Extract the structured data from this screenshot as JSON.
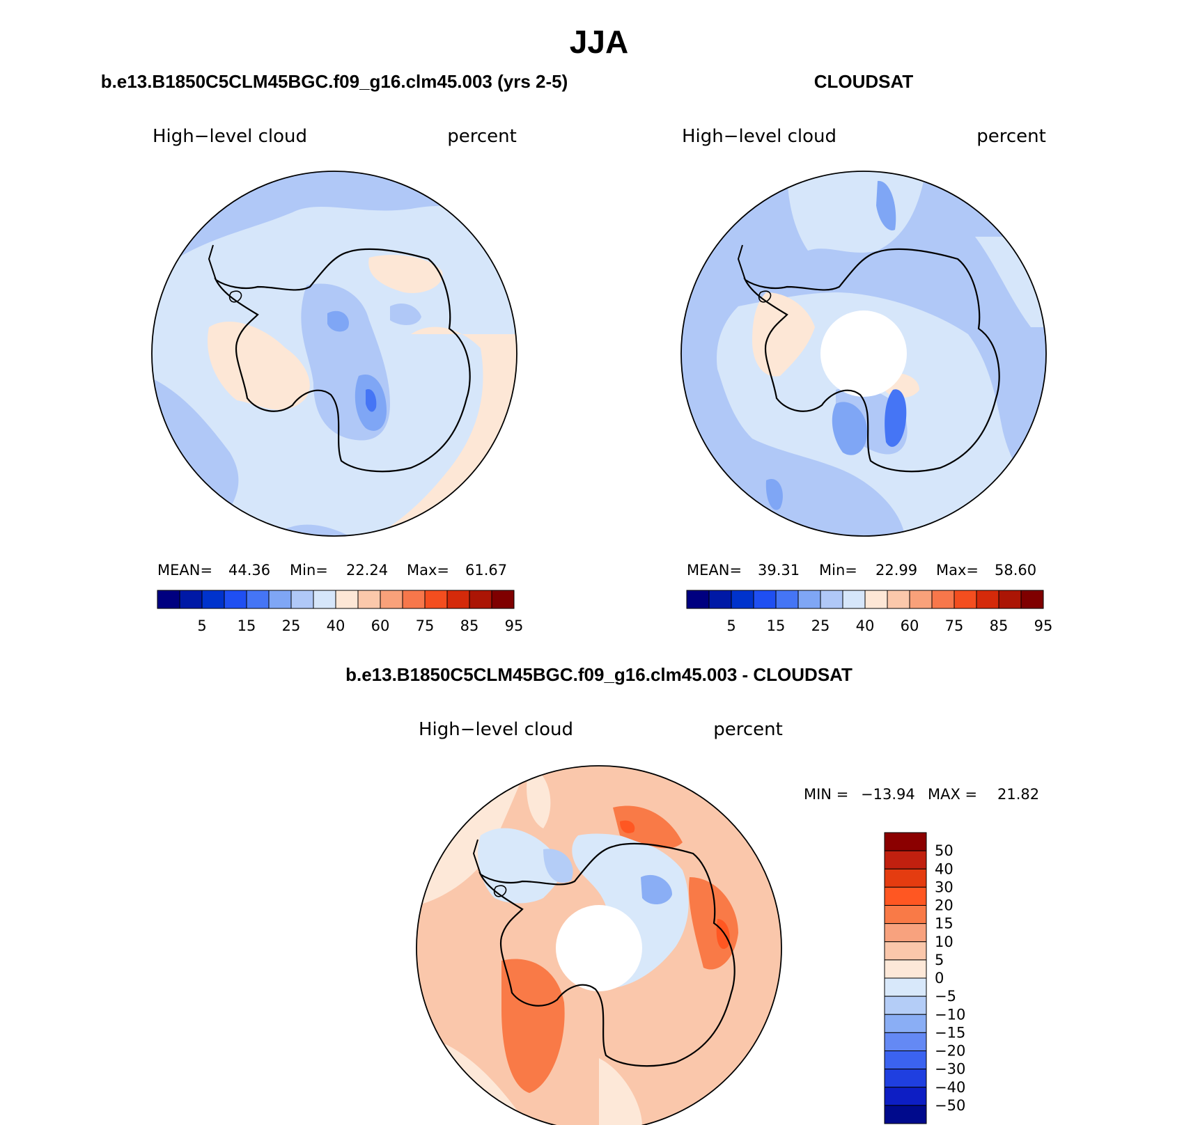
{
  "page": {
    "title": "JJA"
  },
  "panels": [
    {
      "id": "model",
      "heading": "b.e13.B1850C5CLM45BGC.f09_g16.clm45.003 (yrs 2-5)",
      "variable_label": "High−level cloud",
      "units_label": "percent",
      "stats": {
        "mean_label": "MEAN=",
        "mean": "44.36",
        "min_label": "Min=",
        "min": "22.24",
        "max_label": "Max=",
        "max": "61.67"
      },
      "has_pole_hole": false
    },
    {
      "id": "obs",
      "heading": "CLOUDSAT",
      "variable_label": "High−level cloud",
      "units_label": "percent",
      "stats": {
        "mean_label": "MEAN=",
        "mean": "39.31",
        "min_label": "Min=",
        "min": "22.99",
        "max_label": "Max=",
        "max": "58.60"
      },
      "has_pole_hole": true
    }
  ],
  "abs_colorbar": {
    "colors": [
      "#000080",
      "#0019a6",
      "#0033cc",
      "#1f4ff2",
      "#4575f5",
      "#7fa6f5",
      "#b0c8f7",
      "#d6e6fa",
      "#fde7d6",
      "#fbc8ab",
      "#f9a17a",
      "#f7774b",
      "#f44e1f",
      "#d42a0a",
      "#ab1505",
      "#7f0000"
    ],
    "tick_labels": [
      "5",
      "15",
      "25",
      "40",
      "60",
      "75",
      "85",
      "95"
    ]
  },
  "diff_panel": {
    "heading": "b.e13.B1850C5CLM45BGC.f09_g16.clm45.003 - CLOUDSAT",
    "variable_label": "High−level cloud",
    "units_label": "percent",
    "range": {
      "min_label": "MIN =",
      "min": "−13.94",
      "max_label": "MAX =",
      "max": "21.82"
    },
    "colorbar_colors_top_to_bottom": [
      "#8b0000",
      "#c1200f",
      "#e43c10",
      "#ff5722",
      "#f97a47",
      "#f8a27e",
      "#fac7ab",
      "#fde8d8",
      "#d8e8fa",
      "#b4cdf7",
      "#8aaef5",
      "#6489f4",
      "#3b63f0",
      "#1f3fe0",
      "#0d1ec4",
      "#000a8c"
    ],
    "tick_labels": [
      "50",
      "40",
      "30",
      "20",
      "15",
      "10",
      "5",
      "0",
      "−5",
      "−10",
      "−15",
      "−20",
      "−30",
      "−40",
      "−50"
    ]
  },
  "chart_data": [
    {
      "type": "heatmap",
      "projection": "south-polar-stereographic",
      "title": "b.e13.B1850C5CLM45BGC.f09_g16.clm45.003 (yrs 2-5)",
      "variable": "High−level cloud",
      "units": "percent",
      "mean": 44.36,
      "min": 22.24,
      "max": 61.67,
      "levels": [
        5,
        10,
        15,
        20,
        25,
        30,
        40,
        50,
        60,
        70,
        75,
        80,
        85,
        90,
        95
      ]
    },
    {
      "type": "heatmap",
      "projection": "south-polar-stereographic",
      "title": "CLOUDSAT",
      "variable": "High−level cloud",
      "units": "percent",
      "mean": 39.31,
      "min": 22.99,
      "max": 58.6,
      "levels": [
        5,
        10,
        15,
        20,
        25,
        30,
        40,
        50,
        60,
        70,
        75,
        80,
        85,
        90,
        95
      ]
    },
    {
      "type": "heatmap",
      "projection": "south-polar-stereographic",
      "title": "b.e13.B1850C5CLM45BGC.f09_g16.clm45.003 - CLOUDSAT",
      "variable": "High−level cloud",
      "units": "percent",
      "min": -13.94,
      "max": 21.82,
      "levels": [
        -50,
        -40,
        -30,
        -20,
        -15,
        -10,
        -5,
        0,
        5,
        10,
        15,
        20,
        30,
        40,
        50
      ]
    }
  ]
}
